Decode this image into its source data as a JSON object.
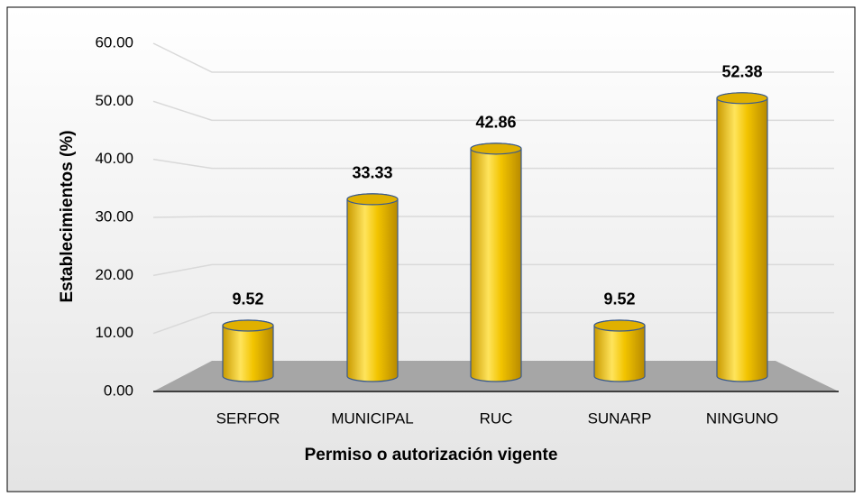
{
  "chart_data": {
    "type": "bar",
    "x_label": "Permiso o autorización vigente",
    "y_label": "Establecimientos (%)",
    "categories": [
      "SERFOR",
      "MUNICIPAL",
      "RUC",
      "SUNARP",
      "NINGUNO"
    ],
    "values": [
      9.52,
      33.33,
      42.86,
      9.52,
      52.38
    ],
    "color": "#f2c400",
    "ylim": [
      0,
      60
    ],
    "yticks": [
      {
        "value": 0,
        "label": "0.00"
      },
      {
        "value": 10,
        "label": "10.00"
      },
      {
        "value": 20,
        "label": "20.00"
      },
      {
        "value": 30,
        "label": "30.00"
      },
      {
        "value": 40,
        "label": "40.00"
      },
      {
        "value": 50,
        "label": "50.00"
      },
      {
        "value": 60,
        "label": "60.00"
      }
    ],
    "grid": true
  }
}
